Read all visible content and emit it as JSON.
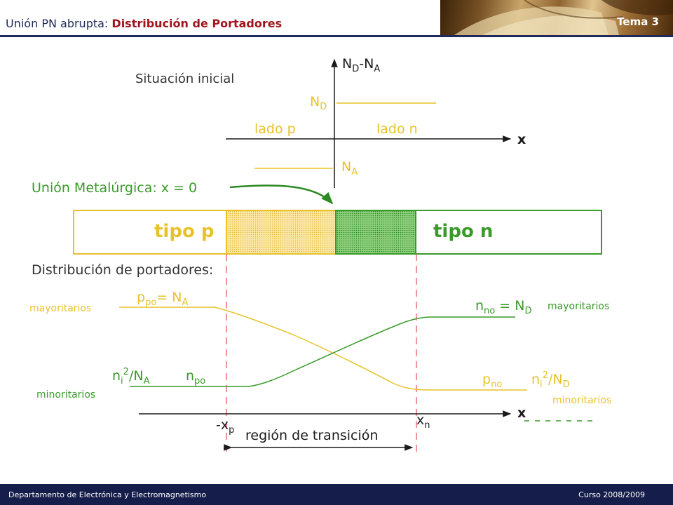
{
  "header": {
    "title_prefix": "Unión PN abrupta: ",
    "title_highlight": "Distribución de Portadores",
    "tema": "Tema 3"
  },
  "footer": {
    "department": "Departamento  de Electrónica  y Electromagnetismo",
    "course": "Curso 2008/2009"
  },
  "diagram": {
    "initial": {
      "title": "Situación inicial",
      "y_axis_label": "N",
      "y_axis_sub": "D",
      "y_axis_mid": "-N",
      "y_axis_sub2": "A",
      "nd_label": "N",
      "nd_sub": "D",
      "na_label": "N",
      "na_sub": "A",
      "side_p": "lado p",
      "side_n": "lado n",
      "x_label": "x"
    },
    "junction_label": "Unión Metalúrgica: x = 0",
    "bar": {
      "p_label": "tipo p",
      "n_label": "tipo n"
    },
    "carriers": {
      "title": "Distribución de portadores:",
      "ppo": "p",
      "ppo_sub": "po",
      "ppo_eq": "= N",
      "ppo_eq_sub": "A",
      "majority_left": "mayoritarios",
      "nno": "n",
      "nno_sub": "no",
      "nno_eq": " = N",
      "nno_eq_sub": "D",
      "majority_right": "mayoritarios",
      "ni_left": "n",
      "ni_left_sub": "i",
      "ni_left_sup": "2",
      "ni_left_rest": "/N",
      "ni_left_rest_sub": "A",
      "npo": "n",
      "npo_sub": "po",
      "minority_left": "minoritarios",
      "pno": "p",
      "pno_sub": "no",
      "ni_right": "n",
      "ni_right_sub": "i",
      "ni_right_sup": "2",
      "ni_right_rest": "/N",
      "ni_right_rest_sub": "D",
      "minority_right": "minoritarios",
      "x_label": "x",
      "xp_label": "-x",
      "xp_sub": "p",
      "xn_label": "x",
      "xn_sub": "n",
      "transition_region": "región de transición"
    },
    "colors": {
      "p_side": "#e8c22a",
      "n_side": "#3a9a2a",
      "axis": "#1a1a1a",
      "depletion_dash": "#e05050"
    }
  }
}
